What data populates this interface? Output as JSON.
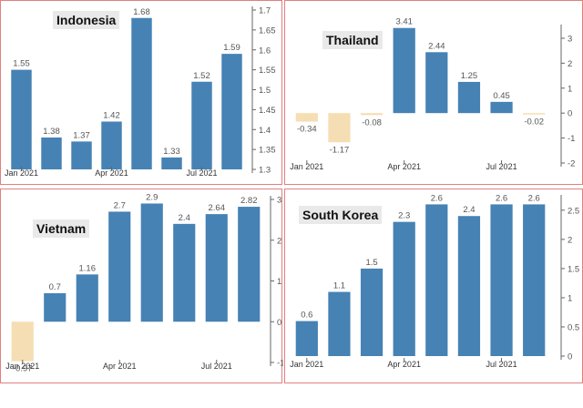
{
  "colors": {
    "positive": "#4682b4",
    "negative": "#f5deb3",
    "axis": "#666666",
    "tick": "#555555"
  },
  "chart_data": [
    {
      "type": "bar",
      "title": "Indonesia",
      "categories": [
        "Jan 2021",
        "Feb 2021",
        "Mar 2021",
        "Apr 2021",
        "May 2021",
        "Jun 2021",
        "Jul 2021",
        "Aug 2021"
      ],
      "values": [
        1.55,
        1.38,
        1.37,
        1.42,
        1.68,
        1.33,
        1.52,
        1.59
      ],
      "labels": [
        "1.55",
        "1.38",
        "1.37",
        "1.42",
        "1.68",
        "1.33",
        "1.52",
        "1.59"
      ],
      "x_ticks": [
        {
          "index": 0,
          "label": "Jan 2021"
        },
        {
          "index": 3,
          "label": "Apr 2021"
        },
        {
          "index": 6,
          "label": "Jul 2021"
        }
      ],
      "y_ticks": [
        "1.7",
        "1.65",
        "1.6",
        "1.55",
        "1.5",
        "1.45",
        "1.4",
        "1.35",
        "1.3"
      ],
      "ylim": [
        1.3,
        1.7
      ],
      "base": 1.3,
      "xlabel": "",
      "ylabel": ""
    },
    {
      "type": "bar",
      "title": "Thailand",
      "categories": [
        "Jan 2021",
        "Feb 2021",
        "Mar 2021",
        "Apr 2021",
        "May 2021",
        "Jun 2021",
        "Jul 2021",
        "Aug 2021"
      ],
      "values": [
        -0.34,
        -1.17,
        -0.08,
        3.41,
        2.44,
        1.25,
        0.45,
        -0.02
      ],
      "labels": [
        "-0.34",
        "-1.17",
        "-0.08",
        "3.41",
        "2.44",
        "1.25",
        "0.45",
        "-0.02"
      ],
      "x_ticks": [
        {
          "index": 0,
          "label": "Jan 2021"
        },
        {
          "index": 3,
          "label": "Apr 2021"
        },
        {
          "index": 6,
          "label": "Jul 2021"
        }
      ],
      "y_ticks": [
        "3",
        "2",
        "1",
        "0",
        "-1",
        "-2"
      ],
      "ylim": [
        -2,
        3.4
      ],
      "base": 0,
      "xlabel": "",
      "ylabel": ""
    },
    {
      "type": "bar",
      "title": "Vietnam",
      "categories": [
        "Jan 2021",
        "Feb 2021",
        "Mar 2021",
        "Apr 2021",
        "May 2021",
        "Jun 2021",
        "Jul 2021",
        "Aug 2021"
      ],
      "values": [
        -0.97,
        0.7,
        1.16,
        2.7,
        2.9,
        2.4,
        2.64,
        2.82
      ],
      "labels": [
        "-0.97",
        "0.7",
        "1.16",
        "2.7",
        "2.9",
        "2.4",
        "2.64",
        "2.82"
      ],
      "x_ticks": [
        {
          "index": 0,
          "label": "Jan 2021"
        },
        {
          "index": 3,
          "label": "Apr 2021"
        },
        {
          "index": 6,
          "label": "Jul 2021"
        }
      ],
      "y_ticks": [
        "3",
        "2",
        "1",
        "0",
        "-1"
      ],
      "ylim": [
        -1,
        3
      ],
      "base": 0,
      "xlabel": "",
      "ylabel": ""
    },
    {
      "type": "bar",
      "title": "South Korea",
      "categories": [
        "Jan 2021",
        "Feb 2021",
        "Mar 2021",
        "Apr 2021",
        "May 2021",
        "Jun 2021",
        "Jul 2021",
        "Aug 2021"
      ],
      "values": [
        0.6,
        1.1,
        1.5,
        2.3,
        2.6,
        2.4,
        2.6,
        2.6
      ],
      "labels": [
        "0.6",
        "1.1",
        "1.5",
        "2.3",
        "2.6",
        "2.4",
        "2.6",
        "2.6"
      ],
      "x_ticks": [
        {
          "index": 0,
          "label": "Jan 2021"
        },
        {
          "index": 3,
          "label": "Apr 2021"
        },
        {
          "index": 6,
          "label": "Jul 2021"
        }
      ],
      "y_ticks": [
        "2.5",
        "2",
        "1.5",
        "1",
        "0.5",
        "0"
      ],
      "ylim": [
        0,
        2.7
      ],
      "base": 0,
      "xlabel": "",
      "ylabel": ""
    }
  ]
}
